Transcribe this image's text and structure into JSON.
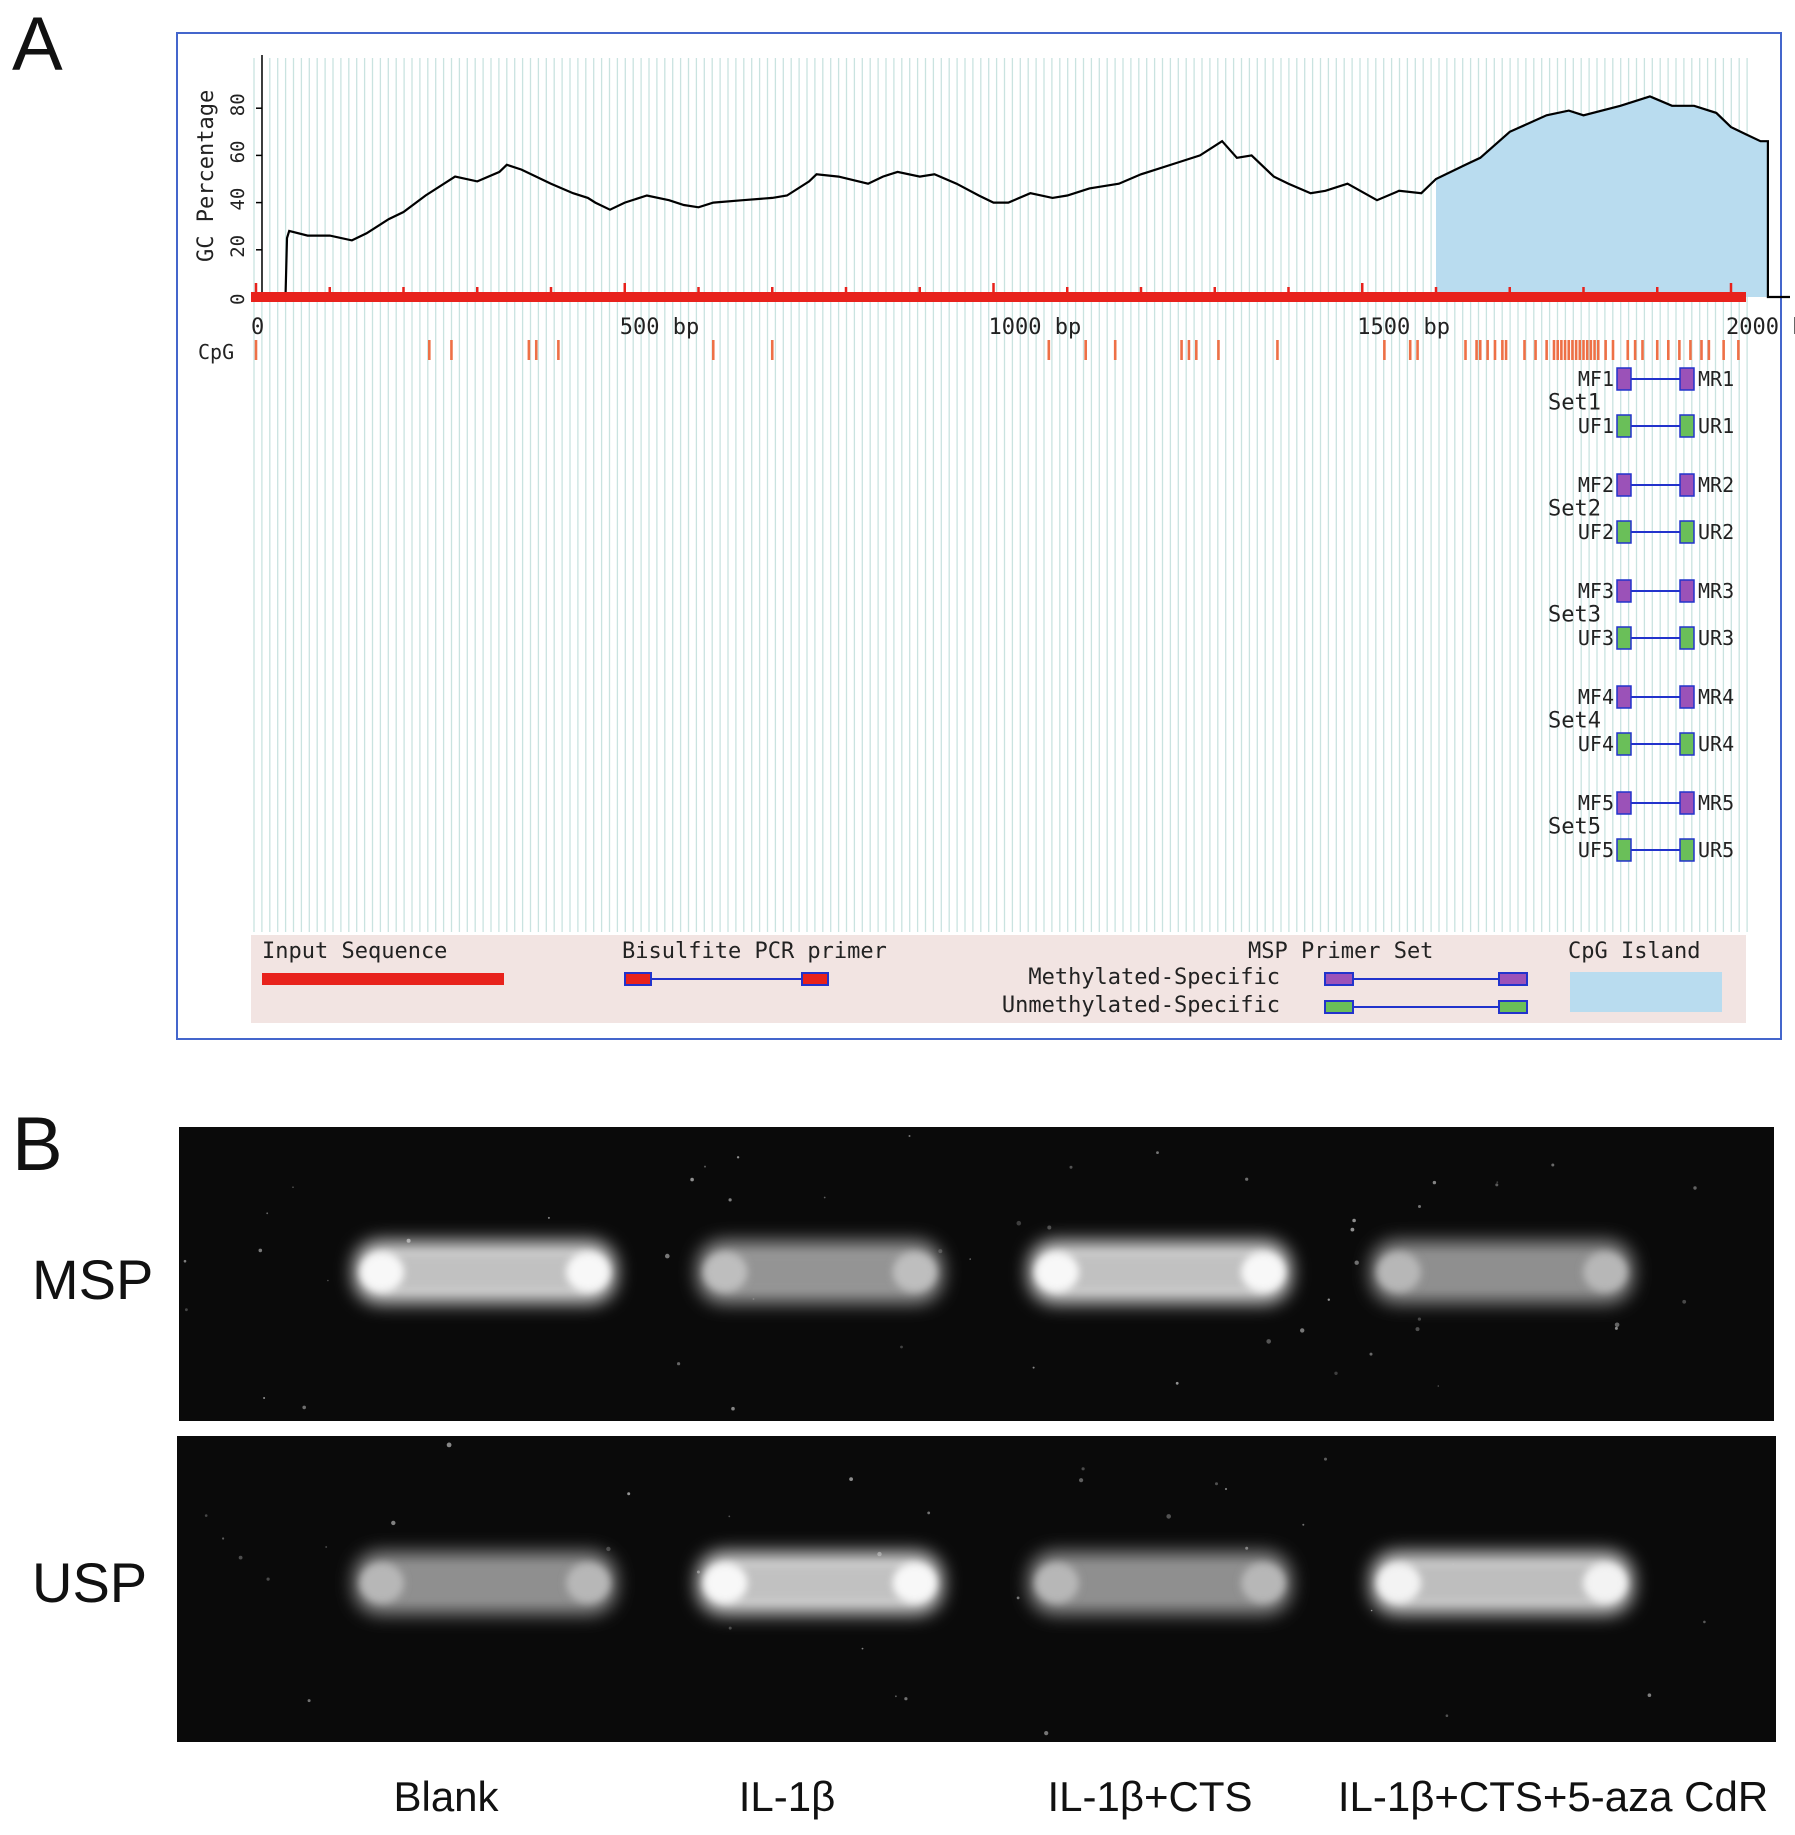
{
  "panel_a": {
    "letter": "A",
    "y_axis_label": "GC Percentage",
    "y_ticks": [
      "0",
      "20",
      "40",
      "60",
      "80"
    ],
    "x_ticks": [
      "0",
      "500 bp",
      "1000 bp",
      "1500 bp",
      "2000 b"
    ],
    "cpg_label": "CpG",
    "gc_profile": [
      [
        0,
        0
      ],
      [
        40,
        0
      ],
      [
        42,
        25
      ],
      [
        45,
        28
      ],
      [
        70,
        26
      ],
      [
        100,
        26
      ],
      [
        130,
        24
      ],
      [
        150,
        27
      ],
      [
        180,
        33
      ],
      [
        200,
        36
      ],
      [
        230,
        43
      ],
      [
        270,
        51
      ],
      [
        300,
        49
      ],
      [
        330,
        53
      ],
      [
        340,
        56
      ],
      [
        360,
        54
      ],
      [
        400,
        48
      ],
      [
        430,
        44
      ],
      [
        450,
        42
      ],
      [
        460,
        40
      ],
      [
        480,
        37
      ],
      [
        500,
        40
      ],
      [
        530,
        43
      ],
      [
        560,
        41
      ],
      [
        580,
        39
      ],
      [
        600,
        38
      ],
      [
        620,
        40
      ],
      [
        660,
        41
      ],
      [
        700,
        42
      ],
      [
        720,
        43
      ],
      [
        750,
        49
      ],
      [
        760,
        52
      ],
      [
        790,
        51
      ],
      [
        830,
        48
      ],
      [
        850,
        51
      ],
      [
        870,
        53
      ],
      [
        900,
        51
      ],
      [
        920,
        52
      ],
      [
        950,
        48
      ],
      [
        980,
        43
      ],
      [
        1000,
        40
      ],
      [
        1020,
        40
      ],
      [
        1050,
        44
      ],
      [
        1080,
        42
      ],
      [
        1100,
        43
      ],
      [
        1130,
        46
      ],
      [
        1150,
        47
      ],
      [
        1170,
        48
      ],
      [
        1200,
        52
      ],
      [
        1250,
        57
      ],
      [
        1280,
        60
      ],
      [
        1310,
        66
      ],
      [
        1330,
        59
      ],
      [
        1350,
        60
      ],
      [
        1380,
        51
      ],
      [
        1400,
        48
      ],
      [
        1430,
        44
      ],
      [
        1450,
        45
      ],
      [
        1480,
        48
      ],
      [
        1520,
        41
      ],
      [
        1550,
        45
      ],
      [
        1580,
        44
      ],
      [
        1600,
        50
      ],
      [
        1640,
        56
      ],
      [
        1660,
        59
      ],
      [
        1700,
        70
      ],
      [
        1750,
        77
      ],
      [
        1780,
        79
      ],
      [
        1800,
        77
      ],
      [
        1850,
        81
      ],
      [
        1890,
        85
      ],
      [
        1920,
        81
      ],
      [
        1950,
        81
      ],
      [
        1980,
        78
      ],
      [
        2000,
        72
      ],
      [
        2020,
        69
      ],
      [
        2040,
        66
      ],
      [
        2050,
        66
      ],
      [
        2050,
        0
      ],
      [
        2080,
        0
      ]
    ],
    "cpg_island": {
      "start": 1600,
      "end": 2050
    },
    "cpg_sites": [
      0,
      235,
      265,
      370,
      380,
      410,
      620,
      700,
      1075,
      1125,
      1165,
      1255,
      1265,
      1275,
      1305,
      1385,
      1530,
      1565,
      1575,
      1640,
      1655,
      1660,
      1670,
      1680,
      1690,
      1695,
      1720,
      1735,
      1750,
      1760,
      1765,
      1770,
      1775,
      1780,
      1785,
      1790,
      1795,
      1800,
      1805,
      1810,
      1815,
      1820,
      1830,
      1840,
      1860,
      1870,
      1880,
      1900,
      1915,
      1930,
      1945,
      1960,
      1970,
      1990,
      2010,
      2025,
      2040,
      2050,
      2060,
      2070
    ],
    "primer_sets": [
      {
        "name": "Set1",
        "mf": "MF1",
        "mr": "MR1",
        "uf": "UF1",
        "ur": "UR1"
      },
      {
        "name": "Set2",
        "mf": "MF2",
        "mr": "MR2",
        "uf": "UF2",
        "ur": "UR2"
      },
      {
        "name": "Set3",
        "mf": "MF3",
        "mr": "MR3",
        "uf": "UF3",
        "ur": "UR3"
      },
      {
        "name": "Set4",
        "mf": "MF4",
        "mr": "MR4",
        "uf": "UF4",
        "ur": "UR4"
      },
      {
        "name": "Set5",
        "mf": "MF5",
        "mr": "MR5",
        "uf": "UF5",
        "ur": "UR5"
      }
    ],
    "legend": {
      "input_sequence": "Input Sequence",
      "bisulfite_primer": "Bisulfite PCR primer",
      "msp_primer_set": "MSP Primer Set",
      "methylated": "Methylated-Specific",
      "unmethylated": "Unmethylated-Specific",
      "cpg_island": "CpG Island"
    },
    "colors": {
      "line": "#000000",
      "island": "#b9dcef",
      "sequence": "#e8221c",
      "cpg_tick": "#ee7046",
      "methylated_box": "#9b52b8",
      "unmethylated_box": "#6abf59",
      "connector": "#2233cc",
      "frame": "#4466cc",
      "grid": "#c9e3e0",
      "legend_bg": "#f2e4e2"
    }
  },
  "panel_b": {
    "letter": "B",
    "rows": [
      "MSP",
      "USP"
    ],
    "lanes": [
      "Blank",
      "IL-1β",
      "IL-1β+CTS",
      "IL-1β+CTS+5-aza CdR"
    ],
    "band_intensity": {
      "MSP": [
        0.95,
        0.55,
        0.95,
        0.5
      ],
      "USP": [
        0.5,
        0.95,
        0.5,
        0.92
      ]
    }
  }
}
